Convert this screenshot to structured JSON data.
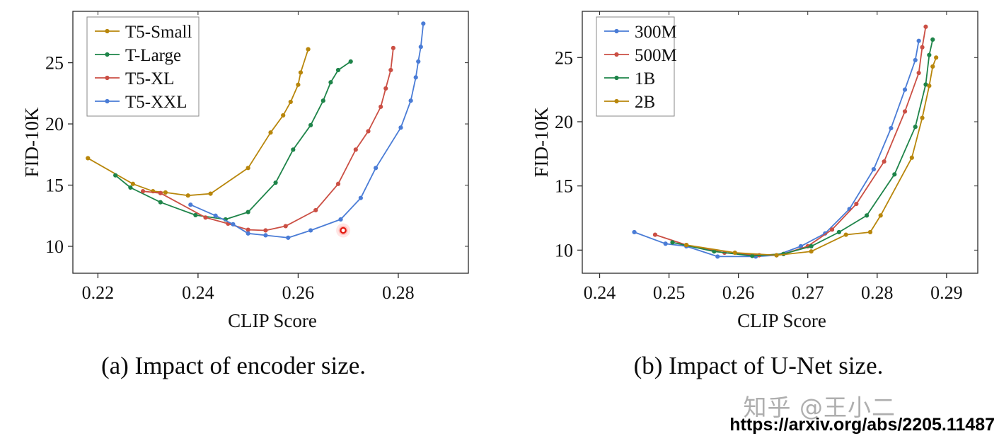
{
  "figure": {
    "caption_a": "(a) Impact of encoder size.",
    "caption_b": "(b) Impact of U-Net size.",
    "watermark": "知乎 @王小二",
    "source_url": "https://arxiv.org/abs/2205.11487"
  },
  "colors": {
    "gold": "#b8860b",
    "green": "#1e8449",
    "red": "#cb4f44",
    "blue": "#4a7cd6",
    "highlight": "#e3170d",
    "axis": "#2b2b2b"
  },
  "chart_data": [
    {
      "type": "line",
      "title": "",
      "xlabel": "CLIP Score",
      "ylabel": "FID-10K",
      "xlim": [
        0.215,
        0.294
      ],
      "ylim": [
        7.8,
        29.2
      ],
      "xticks": [
        0.22,
        0.24,
        0.26,
        0.28
      ],
      "xtick_labels": [
        "0.22",
        "0.24",
        "0.26",
        "0.28"
      ],
      "yticks": [
        10,
        15,
        20,
        25
      ],
      "ytick_labels": [
        "10",
        "15",
        "20",
        "25"
      ],
      "grid": false,
      "legend_position": "top-left",
      "series": [
        {
          "name": "T5-Small",
          "color": "#b8860b",
          "points": [
            [
              0.218,
              17.2
            ],
            [
              0.227,
              15.1
            ],
            [
              0.231,
              14.5
            ],
            [
              0.2335,
              14.4
            ],
            [
              0.238,
              14.15
            ],
            [
              0.2425,
              14.3
            ],
            [
              0.25,
              16.4
            ],
            [
              0.2545,
              19.3
            ],
            [
              0.257,
              20.7
            ],
            [
              0.2585,
              21.8
            ],
            [
              0.26,
              23.2
            ],
            [
              0.2605,
              24.2
            ],
            [
              0.262,
              26.1
            ]
          ]
        },
        {
          "name": "T-Large",
          "color": "#1e8449",
          "points": [
            [
              0.2235,
              15.8
            ],
            [
              0.2265,
              14.8
            ],
            [
              0.2325,
              13.6
            ],
            [
              0.2395,
              12.55
            ],
            [
              0.2455,
              12.2
            ],
            [
              0.25,
              12.8
            ],
            [
              0.2555,
              15.2
            ],
            [
              0.259,
              17.9
            ],
            [
              0.2625,
              19.9
            ],
            [
              0.265,
              21.9
            ],
            [
              0.2665,
              23.4
            ],
            [
              0.268,
              24.4
            ],
            [
              0.2705,
              25.1
            ]
          ]
        },
        {
          "name": "T5-XL",
          "color": "#cb4f44",
          "points": [
            [
              0.229,
              14.5
            ],
            [
              0.2325,
              14.35
            ],
            [
              0.2415,
              12.35
            ],
            [
              0.246,
              11.85
            ],
            [
              0.25,
              11.35
            ],
            [
              0.2535,
              11.3
            ],
            [
              0.2575,
              11.65
            ],
            [
              0.2635,
              12.95
            ],
            [
              0.268,
              15.1
            ],
            [
              0.2715,
              17.9
            ],
            [
              0.274,
              19.4
            ],
            [
              0.2765,
              21.4
            ],
            [
              0.2775,
              22.9
            ],
            [
              0.2785,
              24.4
            ],
            [
              0.279,
              26.2
            ]
          ]
        },
        {
          "name": "T5-XXL",
          "color": "#4a7cd6",
          "points": [
            [
              0.2385,
              13.4
            ],
            [
              0.2435,
              12.5
            ],
            [
              0.247,
              11.8
            ],
            [
              0.25,
              11.05
            ],
            [
              0.2535,
              10.9
            ],
            [
              0.258,
              10.7
            ],
            [
              0.2625,
              11.3
            ],
            [
              0.2685,
              12.2
            ],
            [
              0.2725,
              13.95
            ],
            [
              0.2755,
              16.4
            ],
            [
              0.2805,
              19.7
            ],
            [
              0.2825,
              21.9
            ],
            [
              0.2835,
              23.8
            ],
            [
              0.284,
              25.1
            ],
            [
              0.2845,
              26.3
            ],
            [
              0.285,
              28.2
            ]
          ]
        }
      ],
      "highlight_point": {
        "x": 0.269,
        "y": 11.3,
        "color": "#e3170d"
      }
    },
    {
      "type": "line",
      "title": "",
      "xlabel": "CLIP Score",
      "ylabel": "FID-10K",
      "xlim": [
        0.2375,
        0.2945
      ],
      "ylim": [
        8.2,
        28.6
      ],
      "xticks": [
        0.24,
        0.25,
        0.26,
        0.27,
        0.28,
        0.29
      ],
      "xtick_labels": [
        "0.24",
        "0.25",
        "0.26",
        "0.27",
        "0.28",
        "0.29"
      ],
      "yticks": [
        10,
        15,
        20,
        25
      ],
      "ytick_labels": [
        "10",
        "15",
        "20",
        "25"
      ],
      "grid": false,
      "legend_position": "top-left",
      "series": [
        {
          "name": "300M",
          "color": "#4a7cd6",
          "points": [
            [
              0.245,
              11.4
            ],
            [
              0.2495,
              10.5
            ],
            [
              0.2525,
              10.3
            ],
            [
              0.257,
              9.5
            ],
            [
              0.2625,
              9.5
            ],
            [
              0.2655,
              9.6
            ],
            [
              0.269,
              10.3
            ],
            [
              0.2725,
              11.3
            ],
            [
              0.276,
              13.2
            ],
            [
              0.2795,
              16.3
            ],
            [
              0.282,
              19.5
            ],
            [
              0.284,
              22.5
            ],
            [
              0.2855,
              24.8
            ],
            [
              0.286,
              26.3
            ]
          ]
        },
        {
          "name": "500M",
          "color": "#cb4f44",
          "points": [
            [
              0.248,
              11.2
            ],
            [
              0.2525,
              10.4
            ],
            [
              0.258,
              9.8
            ],
            [
              0.263,
              9.6
            ],
            [
              0.2665,
              9.7
            ],
            [
              0.27,
              10.3
            ],
            [
              0.2735,
              11.6
            ],
            [
              0.277,
              13.6
            ],
            [
              0.281,
              16.9
            ],
            [
              0.284,
              20.8
            ],
            [
              0.286,
              23.8
            ],
            [
              0.2865,
              25.8
            ],
            [
              0.287,
              27.4
            ]
          ]
        },
        {
          "name": "1B",
          "color": "#1e8449",
          "points": [
            [
              0.2505,
              10.6
            ],
            [
              0.2565,
              9.9
            ],
            [
              0.262,
              9.55
            ],
            [
              0.2665,
              9.7
            ],
            [
              0.2705,
              10.3
            ],
            [
              0.2745,
              11.4
            ],
            [
              0.2785,
              12.7
            ],
            [
              0.2825,
              15.9
            ],
            [
              0.2855,
              19.6
            ],
            [
              0.287,
              22.9
            ],
            [
              0.2875,
              25.2
            ],
            [
              0.288,
              26.4
            ]
          ]
        },
        {
          "name": "2B",
          "color": "#b8860b",
          "points": [
            [
              0.2525,
              10.4
            ],
            [
              0.2595,
              9.8
            ],
            [
              0.2655,
              9.6
            ],
            [
              0.2705,
              9.9
            ],
            [
              0.2755,
              11.2
            ],
            [
              0.279,
              11.4
            ],
            [
              0.2805,
              12.7
            ],
            [
              0.285,
              17.2
            ],
            [
              0.2865,
              20.3
            ],
            [
              0.2875,
              22.8
            ],
            [
              0.288,
              24.3
            ],
            [
              0.2885,
              25.0
            ]
          ]
        }
      ],
      "highlight_point": null
    }
  ]
}
